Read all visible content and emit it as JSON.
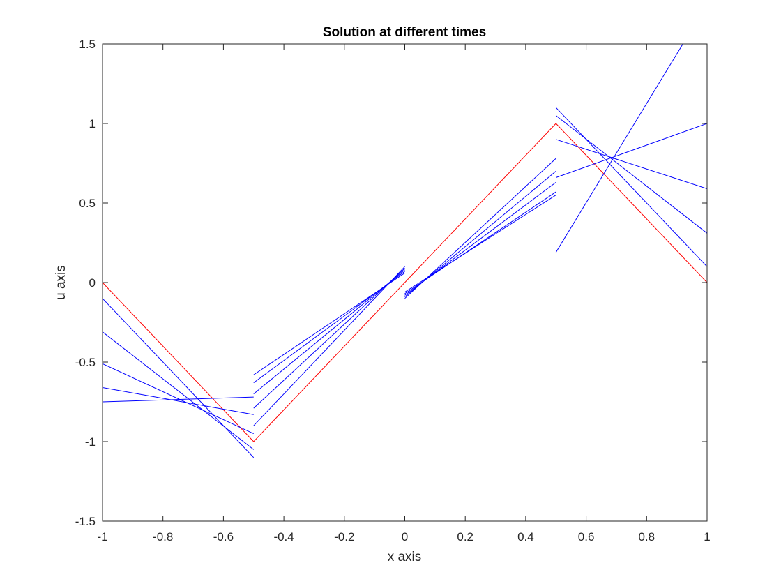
{
  "chart_data": {
    "type": "line",
    "title": "Solution at different times",
    "xlabel": "x axis",
    "ylabel": "u axis",
    "xlim": [
      -1,
      1
    ],
    "ylim": [
      -1.5,
      1.5
    ],
    "xticks": [
      -1,
      -0.8,
      -0.6,
      -0.4,
      -0.2,
      0,
      0.2,
      0.4,
      0.6,
      0.8,
      1
    ],
    "xtick_labels": [
      "-1",
      "-0.8",
      "-0.6",
      "-0.4",
      "-0.2",
      "0",
      "0.2",
      "0.4",
      "0.6",
      "0.8",
      "1"
    ],
    "yticks": [
      -1.5,
      -1,
      -0.5,
      0,
      0.5,
      1,
      1.5
    ],
    "ytick_labels": [
      "-1.5",
      "-1",
      "-0.5",
      "0",
      "0.5",
      "1",
      "1.5"
    ],
    "grid": false,
    "legend": "none",
    "colors": {
      "initial": "#ff0000",
      "later": "#0000ff",
      "axes": "#262626"
    },
    "series": [
      {
        "color": "#ff0000",
        "segments": [
          [
            [
              -1,
              0
            ],
            [
              -0.5,
              -1
            ],
            [
              0.5,
              1
            ],
            [
              1,
              0
            ]
          ]
        ]
      },
      {
        "color": "#0000ff",
        "segments": [
          [
            [
              -1,
              -0.1
            ],
            [
              -0.5,
              -1.1
            ]
          ],
          [
            [
              -0.5,
              -0.9
            ],
            [
              0,
              0.1
            ]
          ],
          [
            [
              0,
              -0.1
            ],
            [
              0.5,
              0.78
            ]
          ],
          [
            [
              0.5,
              1.1
            ],
            [
              1,
              0.1
            ]
          ]
        ]
      },
      {
        "color": "#0000ff",
        "segments": [
          [
            [
              -1,
              -0.31
            ],
            [
              -0.5,
              -1.05
            ]
          ],
          [
            [
              -0.5,
              -0.79
            ],
            [
              0,
              0.09
            ]
          ],
          [
            [
              0,
              -0.09
            ],
            [
              0.5,
              0.7
            ]
          ],
          [
            [
              0.5,
              1.05
            ],
            [
              1,
              0.31
            ]
          ]
        ]
      },
      {
        "color": "#0000ff",
        "segments": [
          [
            [
              -1,
              -0.51
            ],
            [
              -0.5,
              -0.95
            ]
          ],
          [
            [
              -0.5,
              -0.7
            ],
            [
              0,
              0.08
            ]
          ],
          [
            [
              0,
              -0.08
            ],
            [
              0.5,
              0.63
            ]
          ],
          [
            [
              0.5,
              0.9
            ],
            [
              1,
              0.59
            ]
          ]
        ]
      },
      {
        "color": "#0000ff",
        "segments": [
          [
            [
              -1,
              -0.66
            ],
            [
              -0.5,
              -0.83
            ]
          ],
          [
            [
              -0.5,
              -0.63
            ],
            [
              0,
              0.07
            ]
          ],
          [
            [
              0,
              -0.07
            ],
            [
              0.5,
              0.57
            ]
          ],
          [
            [
              0.5,
              0.66
            ],
            [
              1,
              1.0
            ]
          ]
        ]
      },
      {
        "color": "#0000ff",
        "segments": [
          [
            [
              -1,
              -0.75
            ],
            [
              -0.5,
              -0.72
            ]
          ],
          [
            [
              -0.5,
              -0.58
            ],
            [
              0,
              0.06
            ]
          ],
          [
            [
              0,
              -0.06
            ],
            [
              0.5,
              0.55
            ]
          ],
          [
            [
              0.5,
              0.19
            ],
            [
              0.92,
              1.5
            ]
          ]
        ]
      }
    ]
  }
}
